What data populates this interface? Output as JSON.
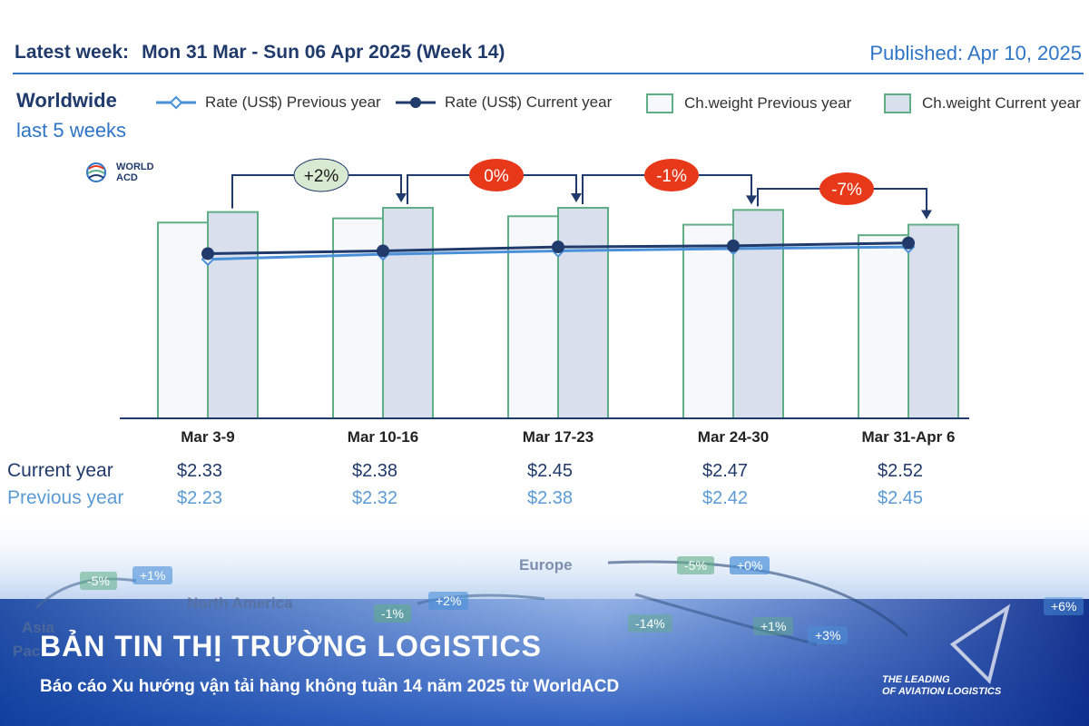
{
  "header": {
    "latest_label": "Latest week:",
    "latest_value": "Mon 31 Mar - Sun 06 Apr 2025 (Week 14)",
    "published": "Published: Apr 10, 2025"
  },
  "subheader": {
    "title": "Worldwide",
    "subtitle": "last 5 weeks"
  },
  "legend": [
    {
      "label": "Rate (US$) Previous year"
    },
    {
      "label": "Rate (US$) Current year"
    },
    {
      "label": "Ch.weight Previous year"
    },
    {
      "label": "Ch.weight Current year"
    }
  ],
  "logo": {
    "line1": "WORLD",
    "line2": "ACD"
  },
  "chart_data": {
    "type": "bar",
    "categories": [
      "Mar 3-9",
      "Mar 10-16",
      "Mar 17-23",
      "Mar 24-30",
      "Mar 31-Apr 6"
    ],
    "series": [
      {
        "name": "Ch.weight Previous year",
        "kind": "bar",
        "values": [
          93,
          95,
          96,
          92,
          87
        ]
      },
      {
        "name": "Ch.weight Current year",
        "kind": "bar",
        "values": [
          98,
          100,
          100,
          99,
          92
        ]
      },
      {
        "name": "Rate (US$) Previous year",
        "kind": "line",
        "values": [
          2.23,
          2.32,
          2.38,
          2.42,
          2.45
        ]
      },
      {
        "name": "Rate (US$) Current year",
        "kind": "line",
        "values": [
          2.33,
          2.38,
          2.45,
          2.47,
          2.52
        ]
      }
    ],
    "annotations": [
      {
        "from": 0,
        "to": 1,
        "label": "+2%",
        "color": "#d9ead3"
      },
      {
        "from": 1,
        "to": 2,
        "label": "0%",
        "color": "#e8381a"
      },
      {
        "from": 2,
        "to": 3,
        "label": "-1%",
        "color": "#e8381a"
      },
      {
        "from": 3,
        "to": 4,
        "label": "-7%",
        "color": "#e8381a"
      }
    ],
    "colors": {
      "bar_prev_fill": "#f7f8fc",
      "bar_prev_stroke": "#5fae85",
      "bar_cur_fill": "#d9dfec",
      "bar_cur_stroke": "#5fae85",
      "line_prev": "#4a90d9",
      "line_cur": "#1f3a6b"
    }
  },
  "table": {
    "current_label": "Current year",
    "previous_label": "Previous year",
    "current": [
      "$2.33",
      "$2.38",
      "$2.45",
      "$2.47",
      "$2.52"
    ],
    "previous": [
      "$2.23",
      "$2.32",
      "$2.38",
      "$2.42",
      "$2.45"
    ]
  },
  "banner": {
    "title": "BẢN TIN THỊ TRƯỜNG LOGISTICS",
    "subtitle": "Báo cáo Xu hướng vận tải hàng không tuần 14 năm 2025 từ WorldACD",
    "tag_line1": "THE LEADING",
    "tag_line2": "OF AVIATION LOGISTICS"
  },
  "map": {
    "labels": [
      "North America",
      "Europe",
      "Asia",
      "Pac"
    ],
    "chips": [
      "-5%",
      "+1%",
      "-1%",
      "+2%",
      "-5%",
      "+0%",
      "-14%",
      "+1%",
      "+3%",
      "+6%"
    ]
  }
}
